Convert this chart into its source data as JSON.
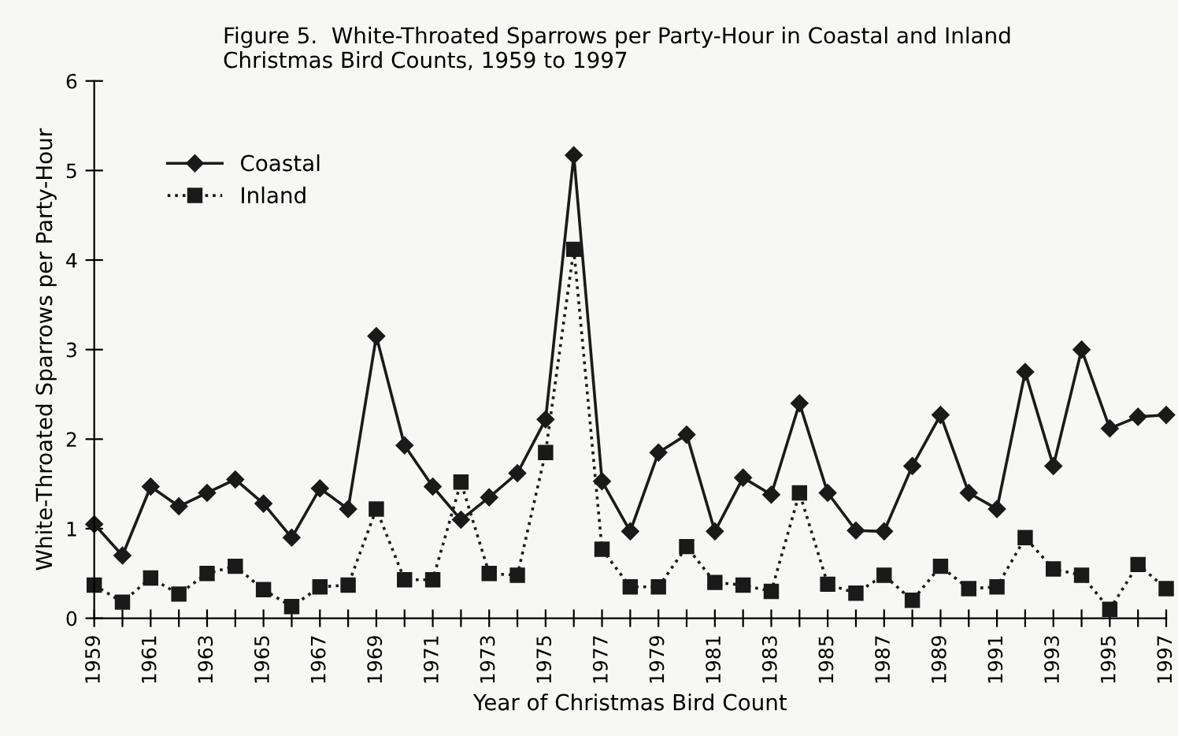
{
  "chart_data": {
    "type": "line",
    "title": "Figure 5.  White-Throated Sparrows per Party-Hour in Coastal and Inland\nChristmas Bird Counts, 1959 to 1997",
    "xlabel": "Year of Christmas Bird Count",
    "ylabel": "White-Throated Sparrows per Party-Hour",
    "x": [
      1959,
      1960,
      1961,
      1962,
      1963,
      1964,
      1965,
      1966,
      1967,
      1968,
      1969,
      1970,
      1971,
      1972,
      1973,
      1974,
      1975,
      1976,
      1977,
      1978,
      1979,
      1980,
      1981,
      1982,
      1983,
      1984,
      1985,
      1986,
      1987,
      1988,
      1989,
      1990,
      1991,
      1992,
      1993,
      1994,
      1995,
      1996,
      1997
    ],
    "series": [
      {
        "name": "Coastal",
        "color": "#1a1a1a",
        "marker": "diamond",
        "line_style": "solid",
        "values": [
          1.05,
          0.7,
          1.47,
          1.25,
          1.4,
          1.55,
          1.28,
          0.9,
          1.45,
          1.22,
          3.15,
          1.93,
          1.47,
          1.1,
          1.35,
          1.62,
          2.22,
          5.17,
          1.53,
          0.97,
          1.85,
          2.05,
          0.97,
          1.57,
          1.38,
          2.4,
          1.4,
          0.98,
          0.97,
          1.7,
          2.27,
          1.4,
          1.22,
          2.75,
          1.7,
          3.0,
          2.12,
          2.25,
          2.27
        ]
      },
      {
        "name": "Inland",
        "color": "#1a1a1a",
        "marker": "square",
        "line_style": "dotted",
        "values": [
          0.37,
          0.18,
          0.45,
          0.27,
          0.5,
          0.58,
          0.32,
          0.13,
          0.35,
          0.37,
          1.22,
          0.43,
          0.43,
          1.52,
          0.5,
          0.48,
          1.85,
          4.12,
          0.77,
          0.35,
          0.35,
          0.8,
          0.4,
          0.37,
          0.3,
          1.4,
          0.38,
          0.28,
          0.48,
          0.2,
          0.58,
          0.33,
          0.35,
          0.9,
          0.55,
          0.48,
          0.1,
          0.6,
          0.33
        ]
      }
    ],
    "xlim": [
      1959,
      1997
    ],
    "xticks": [
      1959,
      {
        "value": 1960,
        "label": null
      },
      1961,
      {
        "value": 1962,
        "label": null
      },
      1963,
      {
        "value": 1964,
        "label": null
      },
      1965,
      {
        "value": 1966,
        "label": null
      },
      1967,
      {
        "value": 1968,
        "label": null
      },
      1969,
      {
        "value": 1970,
        "label": null
      },
      1971,
      {
        "value": 1972,
        "label": null
      },
      1973,
      {
        "value": 1974,
        "label": null
      },
      1975,
      {
        "value": 1976,
        "label": null
      },
      1977,
      {
        "value": 1978,
        "label": null
      },
      1979,
      {
        "value": 1980,
        "label": null
      },
      1981,
      {
        "value": 1982,
        "label": null
      },
      1983,
      {
        "value": 1984,
        "label": null
      },
      1985,
      {
        "value": 1986,
        "label": null
      },
      1987,
      {
        "value": 1988,
        "label": null
      },
      1989,
      {
        "value": 1990,
        "label": null
      },
      1991,
      {
        "value": 1992,
        "label": null
      },
      1993,
      {
        "value": 1994,
        "label": null
      },
      1995,
      {
        "value": 1996,
        "label": null
      },
      1997
    ],
    "ylim": [
      0,
      6
    ],
    "yticks": [
      0,
      1,
      2,
      3,
      4,
      5,
      6
    ],
    "grid": false,
    "legend": "top left"
  }
}
